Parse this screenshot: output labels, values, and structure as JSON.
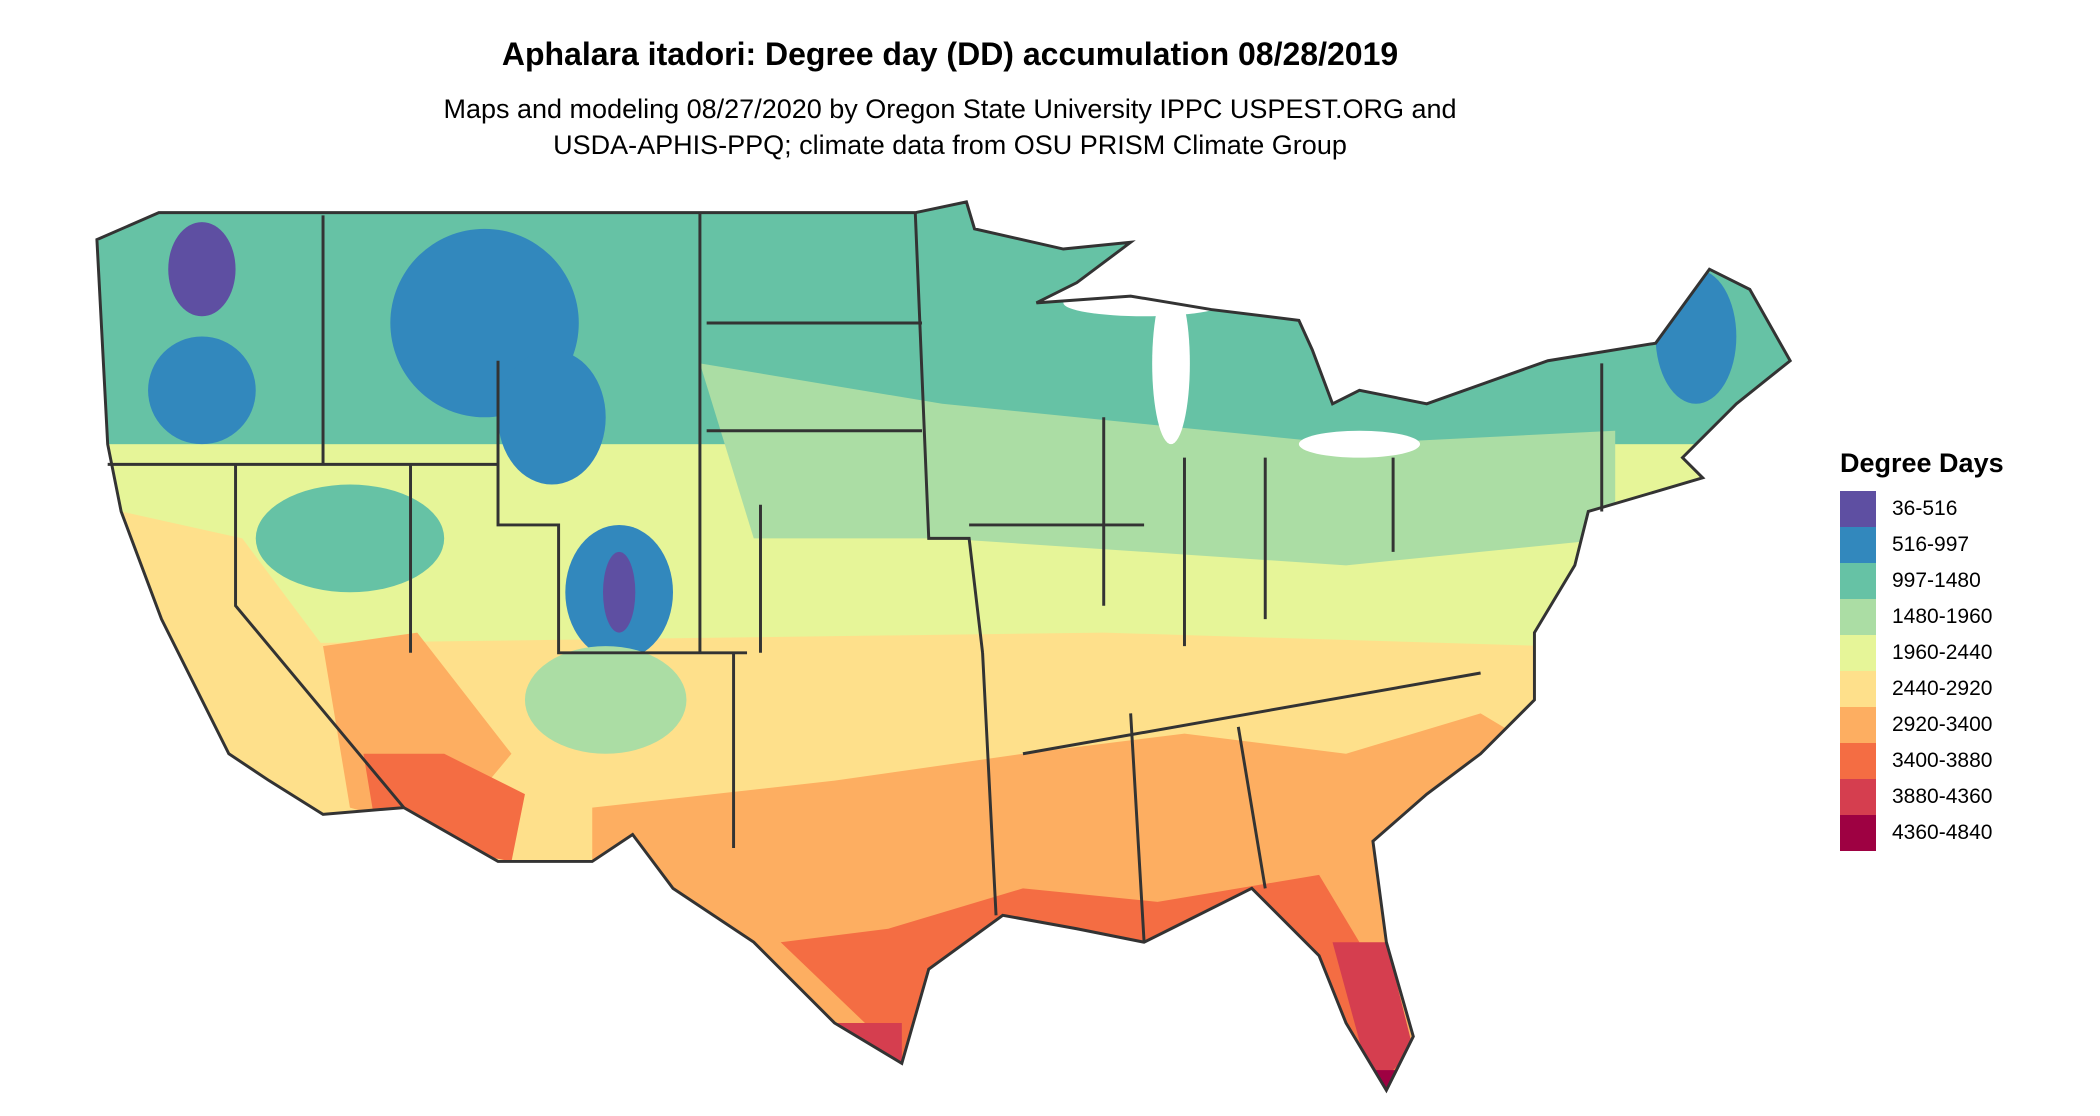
{
  "title": "Aphalara itadori: Degree day (DD) accumulation 08/28/2019",
  "subtitle_lines": [
    "Maps and modeling 08/27/2020 by Oregon State University IPPC USPEST.ORG and",
    "USDA-APHIS-PPQ; climate data from OSU PRISM Climate Group"
  ],
  "chart_data": {
    "type": "choropleth-map",
    "region": "Contiguous United States",
    "variable": "Degree Days",
    "legend": {
      "title": "Degree Days",
      "placement": "right",
      "items": [
        {
          "label": "36-516",
          "color": "#5e4fa2"
        },
        {
          "label": "516-997",
          "color": "#3288bd"
        },
        {
          "label": "997-1480",
          "color": "#66c2a5"
        },
        {
          "label": "1480-1960",
          "color": "#abdda4"
        },
        {
          "label": "1960-2440",
          "color": "#e6f598"
        },
        {
          "label": "2440-2920",
          "color": "#fee08b"
        },
        {
          "label": "2920-3400",
          "color": "#fdae61"
        },
        {
          "label": "3400-3880",
          "color": "#f46d43"
        },
        {
          "label": "3880-4360",
          "color": "#d53e4f"
        },
        {
          "label": "4360-4840",
          "color": "#9e0142"
        }
      ]
    }
  }
}
